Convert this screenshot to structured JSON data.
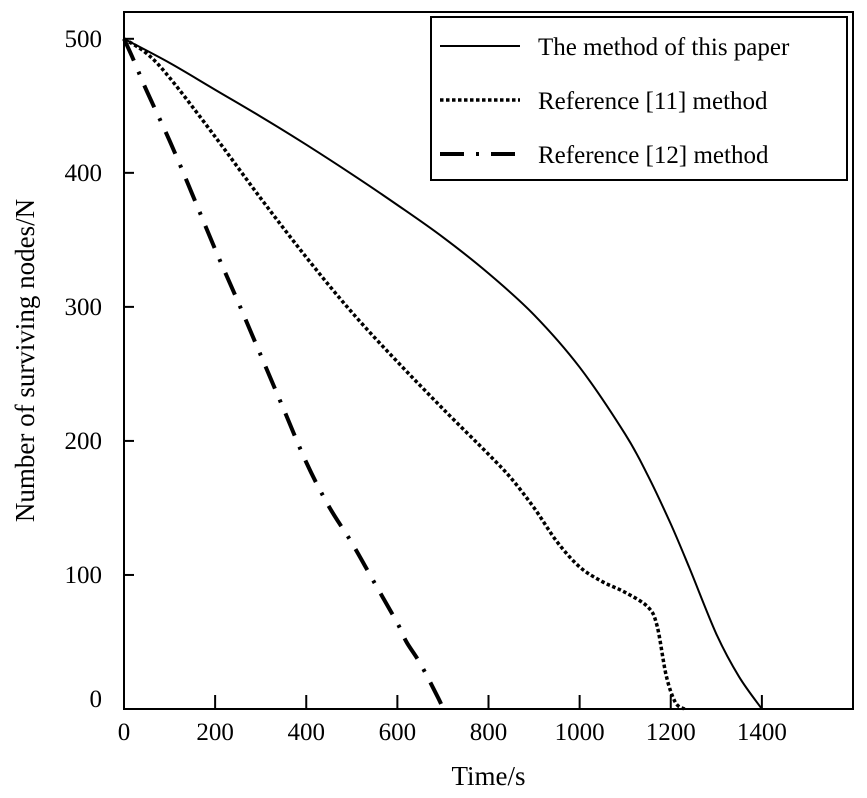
{
  "chart_data": {
    "type": "line",
    "xlabel": "Time/s",
    "ylabel": "Number of surviving nodes/N",
    "xlim": [
      0,
      1600
    ],
    "ylim": [
      0,
      520
    ],
    "x_ticks": [
      0,
      200,
      400,
      600,
      800,
      1000,
      1200,
      1400
    ],
    "y_ticks": [
      0,
      100,
      200,
      300,
      400,
      500
    ],
    "grid": false,
    "legend_position": "top-right",
    "series": [
      {
        "name": "The method of this paper",
        "style": "solid",
        "x": [
          0,
          100,
          200,
          300,
          400,
          500,
          600,
          700,
          800,
          900,
          1000,
          1100,
          1150,
          1200,
          1240,
          1300,
          1350,
          1400
        ],
        "y": [
          500,
          482,
          462,
          442,
          421,
          399,
          376,
          352,
          325,
          294,
          255,
          205,
          174,
          138,
          106,
          56,
          24,
          0
        ]
      },
      {
        "name": "Reference [11] method",
        "style": "dotted",
        "x": [
          0,
          50,
          100,
          200,
          300,
          400,
          500,
          600,
          700,
          800,
          850,
          900,
          950,
          1000,
          1050,
          1100,
          1150,
          1170,
          1190,
          1210,
          1230
        ],
        "y": [
          500,
          489,
          471,
          427,
          381,
          337,
          296,
          259,
          224,
          190,
          172,
          150,
          125,
          106,
          95,
          87,
          76,
          62,
          25,
          5,
          0
        ]
      },
      {
        "name": "Reference [12] method",
        "style": "dash-dot",
        "x": [
          0,
          20,
          50,
          100,
          150,
          200,
          250,
          300,
          350,
          400,
          450,
          500,
          550,
          600,
          620,
          650,
          690,
          700
        ],
        "y": [
          500,
          485,
          461,
          424,
          384,
          343,
          304,
          264,
          224,
          184,
          151,
          124,
          94,
          64,
          50,
          34,
          8,
          0
        ]
      }
    ]
  }
}
